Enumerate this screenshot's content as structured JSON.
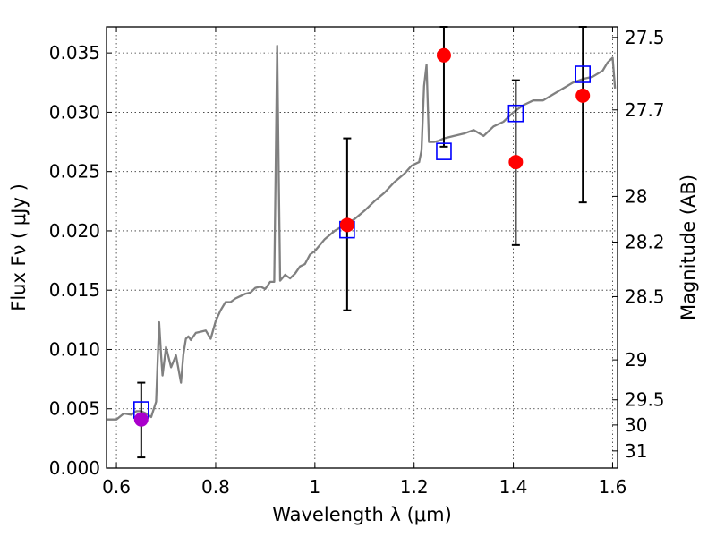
{
  "chart_data": {
    "type": "scatter",
    "title": "",
    "xlabel": "Wavelength  λ (μm)",
    "ylabel": "Flux  Fν  ( μJy )",
    "ylabel_right": "Magnitude (AB)",
    "xlim": [
      0.58,
      1.61
    ],
    "ylim": [
      0.0,
      0.0372
    ],
    "x_ticks": [
      0.6,
      0.8,
      1.0,
      1.2,
      1.4,
      1.6
    ],
    "x_tick_labels": [
      "0.6",
      "0.8",
      "1",
      "1.2",
      "1.4",
      "1.6"
    ],
    "y_ticks": [
      0.0,
      0.005,
      0.01,
      0.015,
      0.02,
      0.025,
      0.03,
      0.035
    ],
    "y_tick_labels": [
      "0.000",
      "0.005",
      "0.010",
      "0.015",
      "0.020",
      "0.025",
      "0.030",
      "0.035"
    ],
    "mag_ticks": [
      27.5,
      27.7,
      28,
      28.2,
      28.5,
      29,
      29.5,
      30,
      31
    ],
    "mag_tick_labels": [
      "27.5",
      "27.7",
      "28",
      "28.2",
      "28.5",
      "29",
      "29.5",
      "30",
      "31"
    ],
    "grid": true,
    "series": [
      {
        "kind": "line",
        "color": "#808080",
        "x": [
          0.58,
          0.6,
          0.615,
          0.63,
          0.64,
          0.65,
          0.66,
          0.67,
          0.68,
          0.686,
          0.69,
          0.693,
          0.7,
          0.71,
          0.72,
          0.73,
          0.735,
          0.74,
          0.745,
          0.75,
          0.76,
          0.77,
          0.78,
          0.79,
          0.8,
          0.81,
          0.82,
          0.83,
          0.84,
          0.85,
          0.86,
          0.87,
          0.88,
          0.89,
          0.9,
          0.91,
          0.918,
          0.921,
          0.924,
          0.927,
          0.93,
          0.94,
          0.95,
          0.96,
          0.97,
          0.98,
          0.99,
          1.0,
          1.02,
          1.04,
          1.06,
          1.08,
          1.1,
          1.12,
          1.14,
          1.16,
          1.18,
          1.195,
          1.2,
          1.21,
          1.215,
          1.22,
          1.225,
          1.23,
          1.24,
          1.25,
          1.26,
          1.28,
          1.3,
          1.32,
          1.34,
          1.36,
          1.38,
          1.4,
          1.42,
          1.44,
          1.46,
          1.48,
          1.5,
          1.52,
          1.54,
          1.56,
          1.58,
          1.59,
          1.6,
          1.605
        ],
        "y": [
          0.0041,
          0.0041,
          0.0046,
          0.0045,
          0.0048,
          0.0048,
          0.0046,
          0.0043,
          0.0056,
          0.0123,
          0.0095,
          0.0078,
          0.0102,
          0.0085,
          0.0095,
          0.0072,
          0.0096,
          0.0109,
          0.0111,
          0.0108,
          0.0114,
          0.0115,
          0.0116,
          0.0109,
          0.0124,
          0.0133,
          0.014,
          0.014,
          0.0143,
          0.0145,
          0.0147,
          0.0148,
          0.0152,
          0.0153,
          0.0151,
          0.0157,
          0.0157,
          0.025,
          0.0356,
          0.025,
          0.0158,
          0.0163,
          0.016,
          0.0164,
          0.017,
          0.0172,
          0.018,
          0.0183,
          0.0193,
          0.02,
          0.0205,
          0.021,
          0.0217,
          0.0225,
          0.0232,
          0.0241,
          0.0248,
          0.0255,
          0.0256,
          0.0258,
          0.0268,
          0.0322,
          0.034,
          0.0275,
          0.0275,
          0.0276,
          0.0278,
          0.028,
          0.0282,
          0.0285,
          0.028,
          0.0288,
          0.0292,
          0.03,
          0.0306,
          0.031,
          0.031,
          0.0315,
          0.032,
          0.0325,
          0.0328,
          0.033,
          0.0335,
          0.0342,
          0.0346,
          0.032
        ]
      },
      {
        "kind": "open-square",
        "color": "#0000ff",
        "x": [
          0.65,
          1.065,
          1.26,
          1.405,
          1.54
        ],
        "y": [
          0.0049,
          0.0201,
          0.0267,
          0.0299,
          0.0332
        ]
      },
      {
        "kind": "circle",
        "color": "#ff0000",
        "x": [
          1.065,
          1.26,
          1.405,
          1.54
        ],
        "y": [
          0.0205,
          0.0348,
          0.0258,
          0.0314
        ],
        "yerr_low": [
          0.0133,
          0.0271,
          0.0188,
          0.0224
        ],
        "yerr_high": [
          0.0278,
          0.0372,
          0.0327,
          0.0372
        ]
      },
      {
        "kind": "circle",
        "color": "#aa00cc",
        "x": [
          0.65
        ],
        "y": [
          0.0041
        ],
        "yerr_low": [
          0.0009
        ],
        "yerr_high": [
          0.0072
        ]
      }
    ]
  }
}
